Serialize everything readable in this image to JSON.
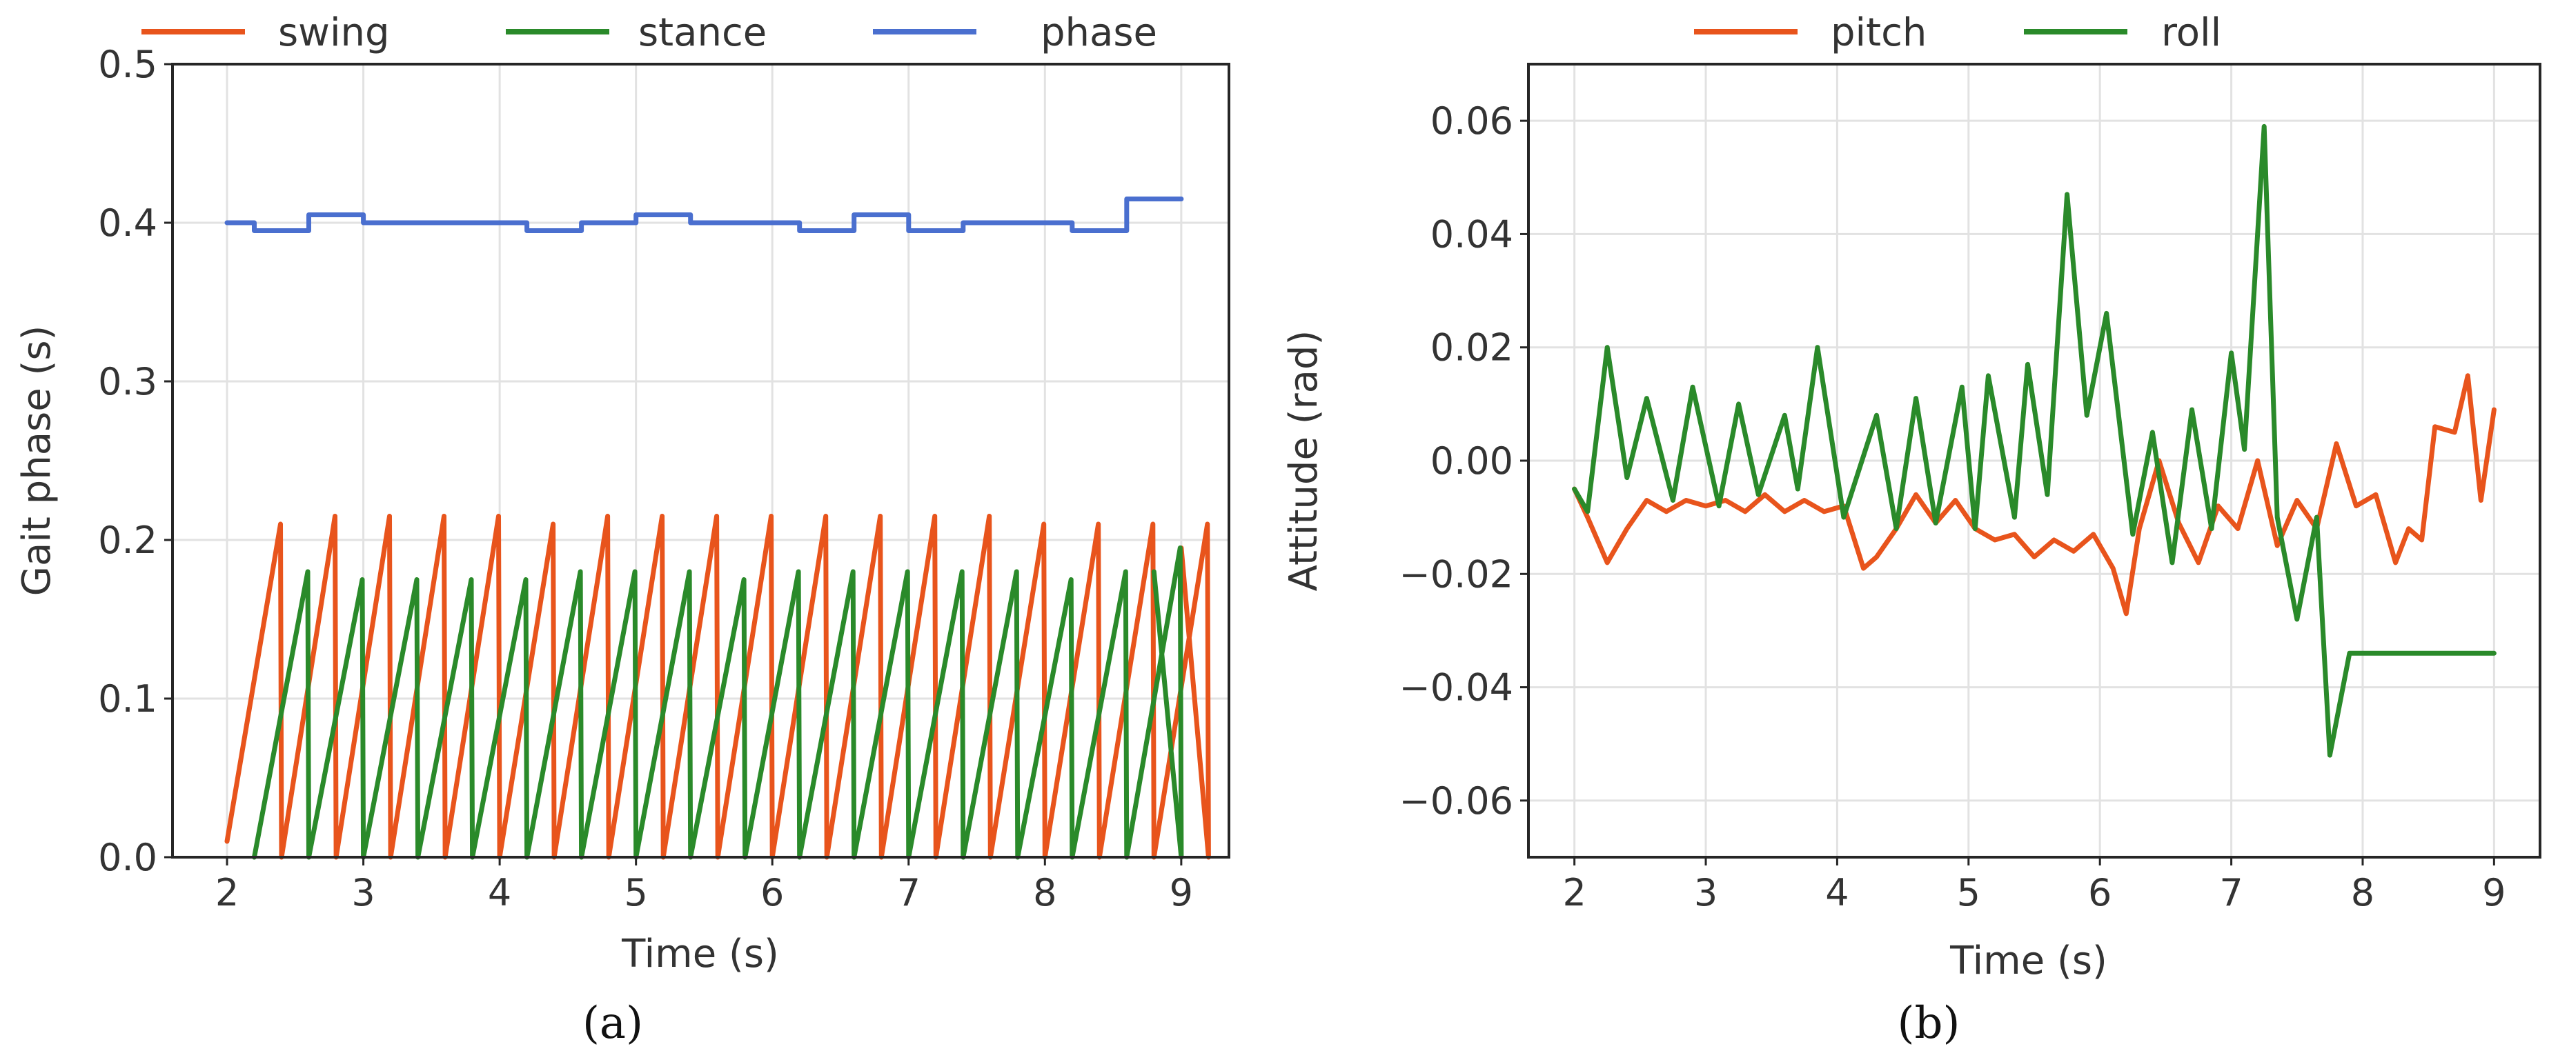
{
  "colors": {
    "swing": "#e8541c",
    "stance": "#2a8a2a",
    "phase": "#4a6fcf",
    "pitch": "#e8541c",
    "roll": "#2a8a2a"
  },
  "chart_data": [
    {
      "type": "line",
      "caption": "(a)",
      "xlabel": "Time (s)",
      "ylabel": "Gait phase (s)",
      "xlim": [
        1.6,
        9.35
      ],
      "ylim": [
        0,
        0.5
      ],
      "xticks": [
        2,
        3,
        4,
        5,
        6,
        7,
        8,
        9
      ],
      "xtick_labels": [
        "2",
        "3",
        "4",
        "5",
        "6",
        "7",
        "8",
        "9"
      ],
      "yticks": [
        0.0,
        0.1,
        0.2,
        0.3,
        0.4,
        0.5
      ],
      "ytick_labels": [
        "0.0",
        "0.1",
        "0.2",
        "0.3",
        "0.4",
        "0.5"
      ],
      "legend_position": "top",
      "series": [
        {
          "name": "swing",
          "style": "sawtooth",
          "period": 0.4,
          "t_start": 2.0,
          "t_end": 9.0,
          "start_value": 0.01,
          "peaks": [
            0.21,
            0.215,
            0.215,
            0.215,
            0.215,
            0.21,
            0.215,
            0.215,
            0.215,
            0.215,
            0.215,
            0.215,
            0.215,
            0.215,
            0.21,
            0.21,
            0.21,
            0.21
          ],
          "end_value": 0.195
        },
        {
          "name": "stance",
          "style": "sawtooth",
          "period": 0.4,
          "t_start": 2.2,
          "t_end": 8.8,
          "peaks": [
            0.18,
            0.175,
            0.175,
            0.175,
            0.175,
            0.18,
            0.18,
            0.18,
            0.175,
            0.18,
            0.18,
            0.18,
            0.18,
            0.18,
            0.175,
            0.18,
            0.195
          ],
          "end_value": 0.18
        },
        {
          "name": "phase",
          "style": "step",
          "t": [
            2.0,
            2.2,
            2.6,
            3.0,
            4.2,
            4.6,
            5.0,
            5.4,
            6.2,
            6.6,
            7.0,
            7.4,
            8.2,
            8.6,
            9.0
          ],
          "values": [
            0.4,
            0.395,
            0.405,
            0.4,
            0.395,
            0.4,
            0.405,
            0.4,
            0.395,
            0.405,
            0.395,
            0.4,
            0.395,
            0.415,
            0.415
          ]
        }
      ]
    },
    {
      "type": "line",
      "caption": "(b)",
      "xlabel": "Time (s)",
      "ylabel": "Attitude (rad)",
      "xlim": [
        1.65,
        9.35
      ],
      "ylim": [
        -0.07,
        0.07
      ],
      "xticks": [
        2,
        3,
        4,
        5,
        6,
        7,
        8,
        9
      ],
      "xtick_labels": [
        "2",
        "3",
        "4",
        "5",
        "6",
        "7",
        "8",
        "9"
      ],
      "yticks": [
        -0.06,
        -0.04,
        -0.02,
        0.0,
        0.02,
        0.04,
        0.06
      ],
      "ytick_labels": [
        "−0.06",
        "−0.04",
        "−0.02",
        "0.00",
        "0.02",
        "0.04",
        "0.06"
      ],
      "legend_position": "top",
      "series": [
        {
          "name": "pitch",
          "x": [
            2.0,
            2.1,
            2.25,
            2.4,
            2.55,
            2.7,
            2.85,
            3.0,
            3.15,
            3.3,
            3.45,
            3.6,
            3.75,
            3.9,
            4.05,
            4.2,
            4.3,
            4.45,
            4.6,
            4.75,
            4.9,
            5.05,
            5.2,
            5.35,
            5.5,
            5.65,
            5.8,
            5.95,
            6.1,
            6.2,
            6.3,
            6.45,
            6.6,
            6.75,
            6.9,
            7.05,
            7.2,
            7.35,
            7.5,
            7.65,
            7.8,
            7.95,
            8.1,
            8.25,
            8.35,
            8.45,
            8.55,
            8.7,
            8.8,
            8.9,
            9.0
          ],
          "y": [
            -0.005,
            -0.01,
            -0.018,
            -0.012,
            -0.007,
            -0.009,
            -0.007,
            -0.008,
            -0.007,
            -0.009,
            -0.006,
            -0.009,
            -0.007,
            -0.009,
            -0.008,
            -0.019,
            -0.017,
            -0.012,
            -0.006,
            -0.011,
            -0.007,
            -0.012,
            -0.014,
            -0.013,
            -0.017,
            -0.014,
            -0.016,
            -0.013,
            -0.019,
            -0.027,
            -0.012,
            -0.0,
            -0.011,
            -0.018,
            -0.008,
            -0.012,
            -0.0,
            -0.015,
            -0.007,
            -0.012,
            0.003,
            -0.008,
            -0.006,
            -0.018,
            -0.012,
            -0.014,
            0.006,
            0.005,
            0.015,
            -0.007,
            0.009
          ]
        },
        {
          "name": "roll",
          "x": [
            2.0,
            2.1,
            2.25,
            2.4,
            2.55,
            2.75,
            2.9,
            3.1,
            3.25,
            3.4,
            3.6,
            3.7,
            3.85,
            4.05,
            4.3,
            4.45,
            4.6,
            4.75,
            4.95,
            5.05,
            5.15,
            5.35,
            5.45,
            5.6,
            5.75,
            5.9,
            6.05,
            6.25,
            6.4,
            6.55,
            6.7,
            6.85,
            7.0,
            7.1,
            7.25,
            7.35,
            7.5,
            7.65,
            7.75,
            7.9,
            8.05,
            8.25,
            8.45,
            8.55,
            8.75,
            8.9,
            9.0
          ],
          "y": [
            -0.005,
            -0.009,
            0.02,
            -0.003,
            0.011,
            -0.007,
            0.013,
            -0.008,
            0.01,
            -0.006,
            0.008,
            -0.005,
            0.02,
            -0.01,
            0.008,
            -0.012,
            0.011,
            -0.011,
            0.013,
            -0.012,
            0.015,
            -0.01,
            0.017,
            -0.006,
            0.047,
            0.008,
            0.026,
            -0.013,
            0.005,
            -0.018,
            0.009,
            -0.012,
            0.019,
            0.002,
            0.059,
            -0.01,
            -0.028,
            -0.01,
            -0.052,
            -0.034,
            -0.034,
            -0.034,
            -0.034,
            -0.034,
            -0.034,
            -0.034,
            -0.034
          ]
        }
      ]
    }
  ]
}
